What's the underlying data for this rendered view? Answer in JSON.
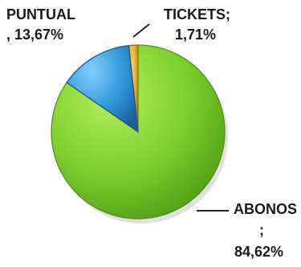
{
  "chart_data": {
    "type": "pie",
    "slices": [
      {
        "name": "TICKETS",
        "value": 1.71,
        "color": "#e8a21b",
        "label_line1": "TICKETS;",
        "label_line2": "1,71%"
      },
      {
        "name": "PUNTUAL",
        "value": 13.67,
        "color": "#2f93d6",
        "label_line1": "PUNTUAL",
        "label_line2": ", 13,67%"
      },
      {
        "name": "ABONOS",
        "value": 84.62,
        "color": "#72c42b",
        "label_line1": "ABONOS",
        "label_line2": ";",
        "label_line3": "84,62%"
      }
    ],
    "legend": "none",
    "style": "3d-shaded"
  }
}
